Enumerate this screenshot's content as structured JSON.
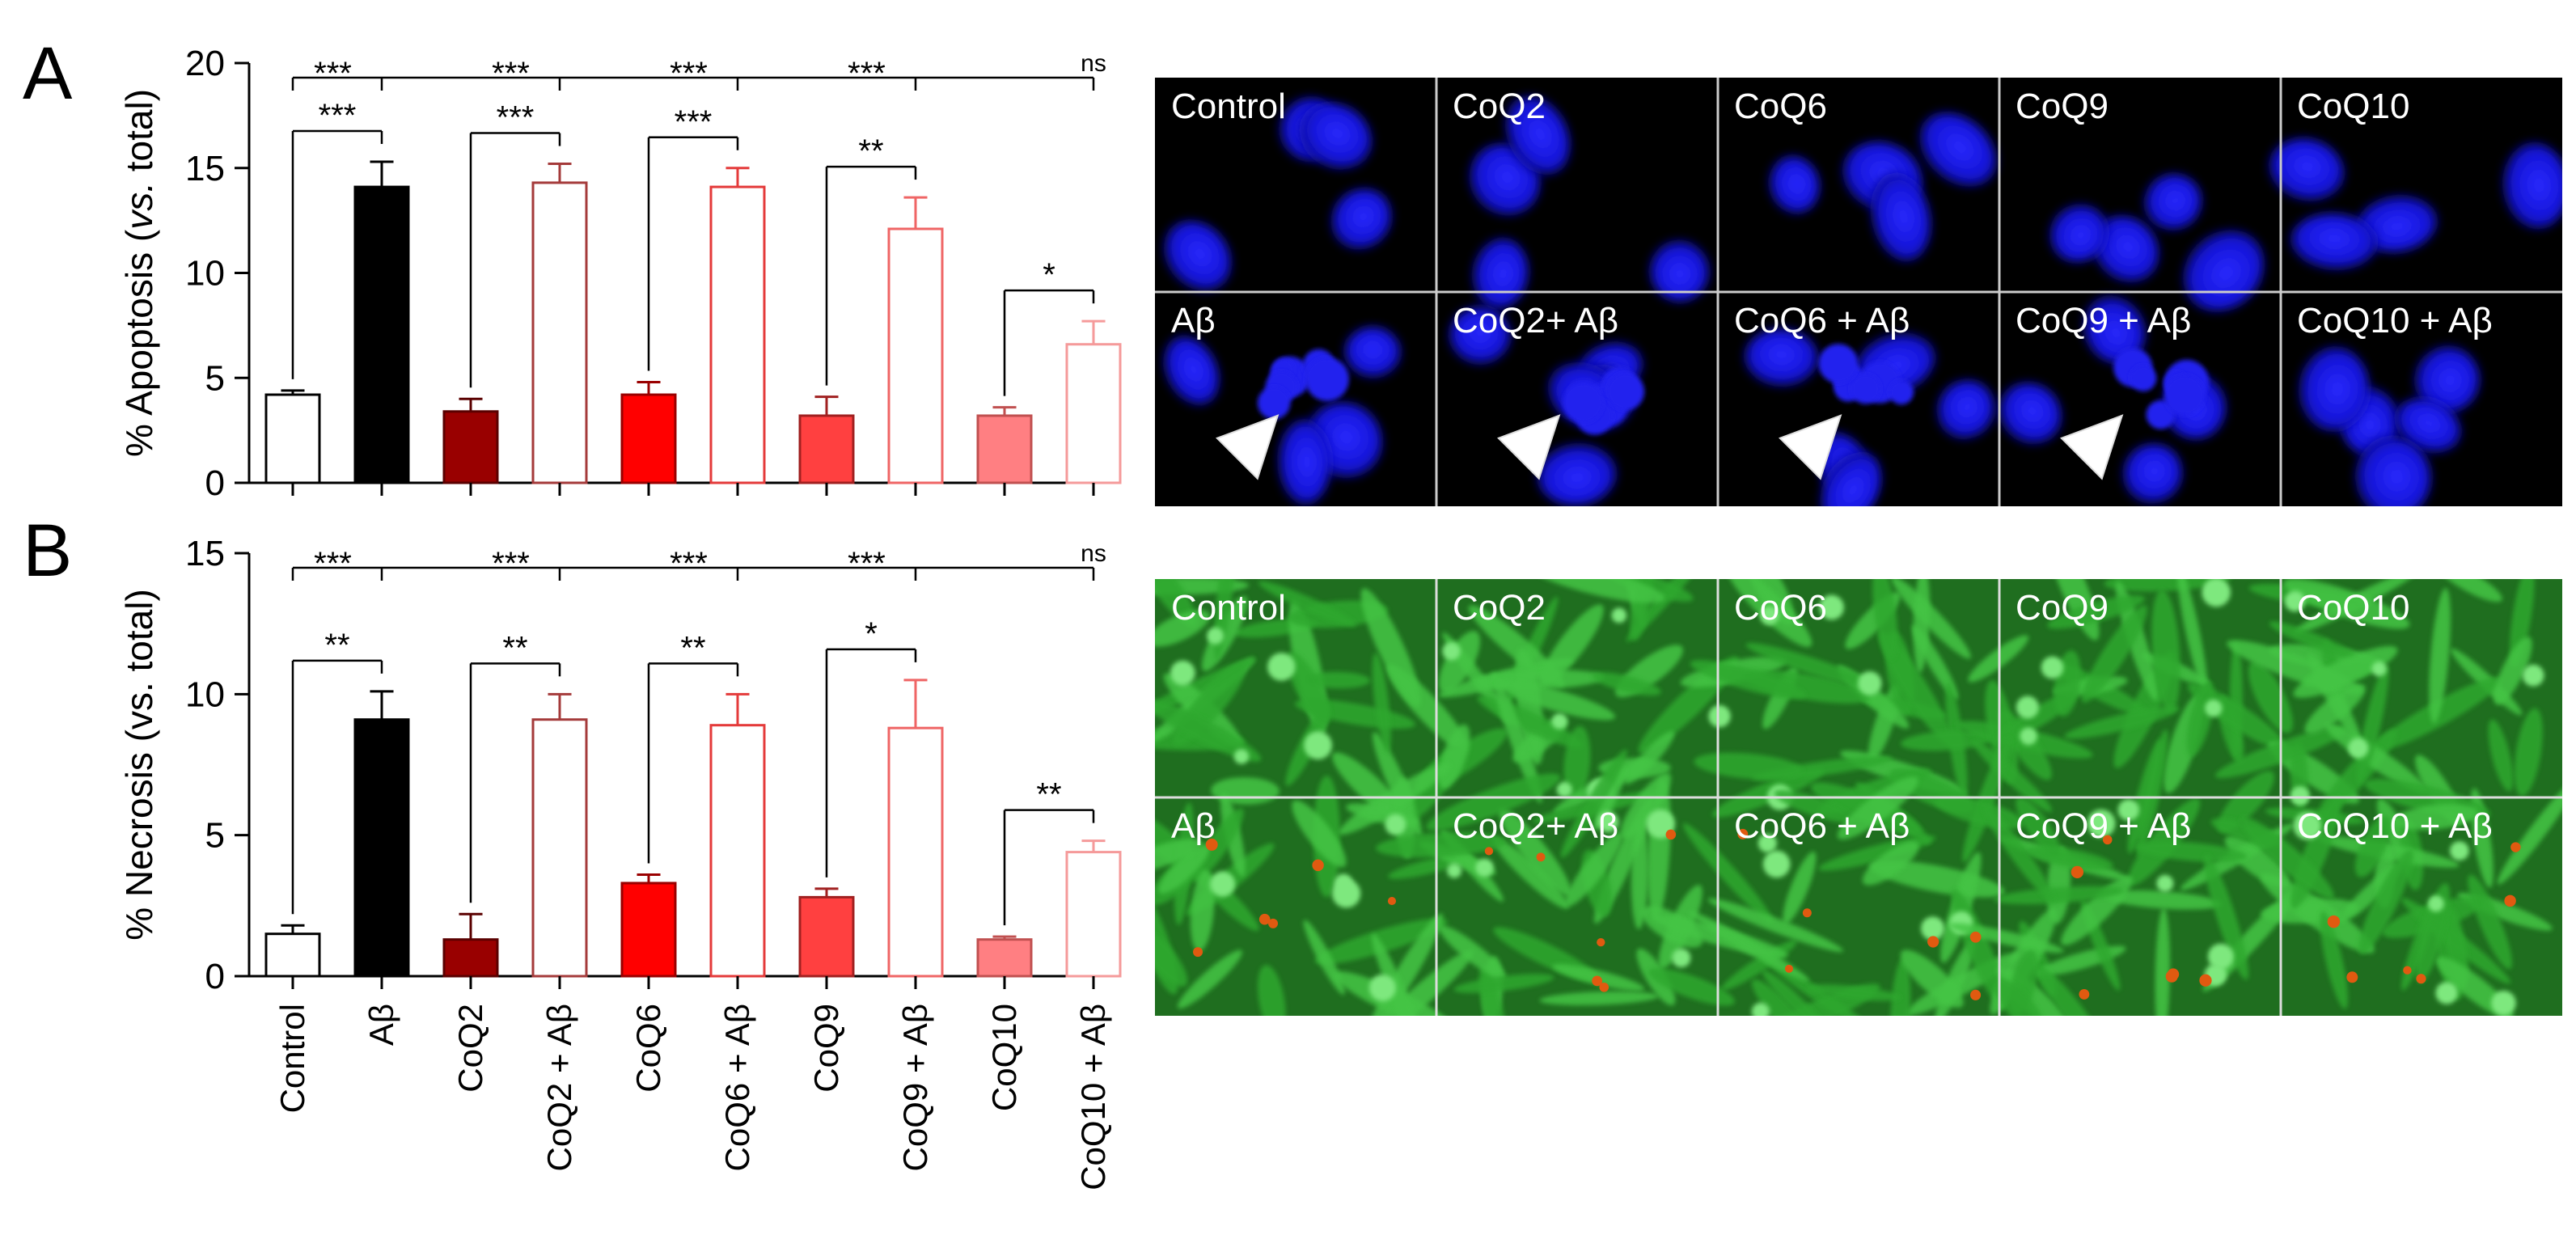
{
  "figure": {
    "panel_labels": [
      "A",
      "B"
    ],
    "micrograph_labels_top": [
      "Control",
      "CoQ2",
      "CoQ6",
      "CoQ9",
      "CoQ10"
    ],
    "micrograph_labels_bottom": [
      "Aβ",
      "CoQ2+ Aβ",
      "CoQ6 + Aβ",
      "CoQ9 + Aβ",
      "CoQ10 + Aβ"
    ],
    "colors": {
      "black": "#000000",
      "dark_red": "#990000",
      "red": "#ff0000",
      "light_red": "#ff4040",
      "pink": "#ff7f82",
      "outline_dark_red": "#a43a3a",
      "outline_red": "#e43a3a",
      "outline_light_red": "#ef6565",
      "outline_pink": "#f59a9a",
      "nuclei_blue": "#1818e6",
      "calcein_green": "#2fa82f",
      "ethidium_red": "#e05a10"
    }
  },
  "chart_data": [
    {
      "type": "bar",
      "panel": "A",
      "ylabel_prefix": "% Apoptosis (",
      "ylabel_italic": "vs.",
      "ylabel_suffix": " total)",
      "ylim": [
        0,
        20
      ],
      "yticks": [
        "0",
        "5",
        "10",
        "15",
        "20"
      ],
      "categories": [
        "Control",
        "Aβ",
        "CoQ2",
        "CoQ2 + Aβ",
        "CoQ6",
        "CoQ6 + Aβ",
        "CoQ9",
        "CoQ9 + Aβ",
        "CoQ10",
        "CoQ10 + Aβ"
      ],
      "values": [
        4.2,
        14.1,
        3.4,
        14.3,
        4.2,
        14.1,
        3.2,
        12.1,
        3.2,
        6.6
      ],
      "errors": [
        0.2,
        1.2,
        0.6,
        0.9,
        0.6,
        0.9,
        0.9,
        1.5,
        0.4,
        1.1
      ],
      "bar_styles": [
        "open-black",
        "black",
        "dark_red",
        "open-dark_red",
        "red",
        "open-red",
        "light_red",
        "open-light_red",
        "pink",
        "open-pink"
      ],
      "pair_significance": [
        "***",
        "***",
        "***",
        "**",
        "*"
      ],
      "vs_control_significance": [
        "***",
        "***",
        "***",
        "***",
        "ns"
      ]
    },
    {
      "type": "bar",
      "panel": "B",
      "ylabel_prefix": "% Necrosis (vs. total)",
      "ylabel_italic": "",
      "ylabel_suffix": "",
      "ylim": [
        0,
        15
      ],
      "yticks": [
        "0",
        "5",
        "10",
        "15"
      ],
      "categories": [
        "Control",
        "Aβ",
        "CoQ2",
        "CoQ2 + Aβ",
        "CoQ6",
        "CoQ6 + Aβ",
        "CoQ9",
        "CoQ9 + Aβ",
        "CoQ10",
        "CoQ10 + Aβ"
      ],
      "values": [
        1.5,
        9.1,
        1.3,
        9.1,
        3.3,
        8.9,
        2.8,
        8.8,
        1.3,
        4.4
      ],
      "errors": [
        0.3,
        1.0,
        0.9,
        0.9,
        0.3,
        1.1,
        0.3,
        1.7,
        0.1,
        0.4
      ],
      "bar_styles": [
        "open-black",
        "black",
        "dark_red",
        "open-dark_red",
        "red",
        "open-red",
        "light_red",
        "open-light_red",
        "pink",
        "open-pink"
      ],
      "pair_significance": [
        "**",
        "**",
        "**",
        "*",
        "**"
      ],
      "vs_control_significance": [
        "***",
        "***",
        "***",
        "***",
        "ns"
      ]
    }
  ]
}
